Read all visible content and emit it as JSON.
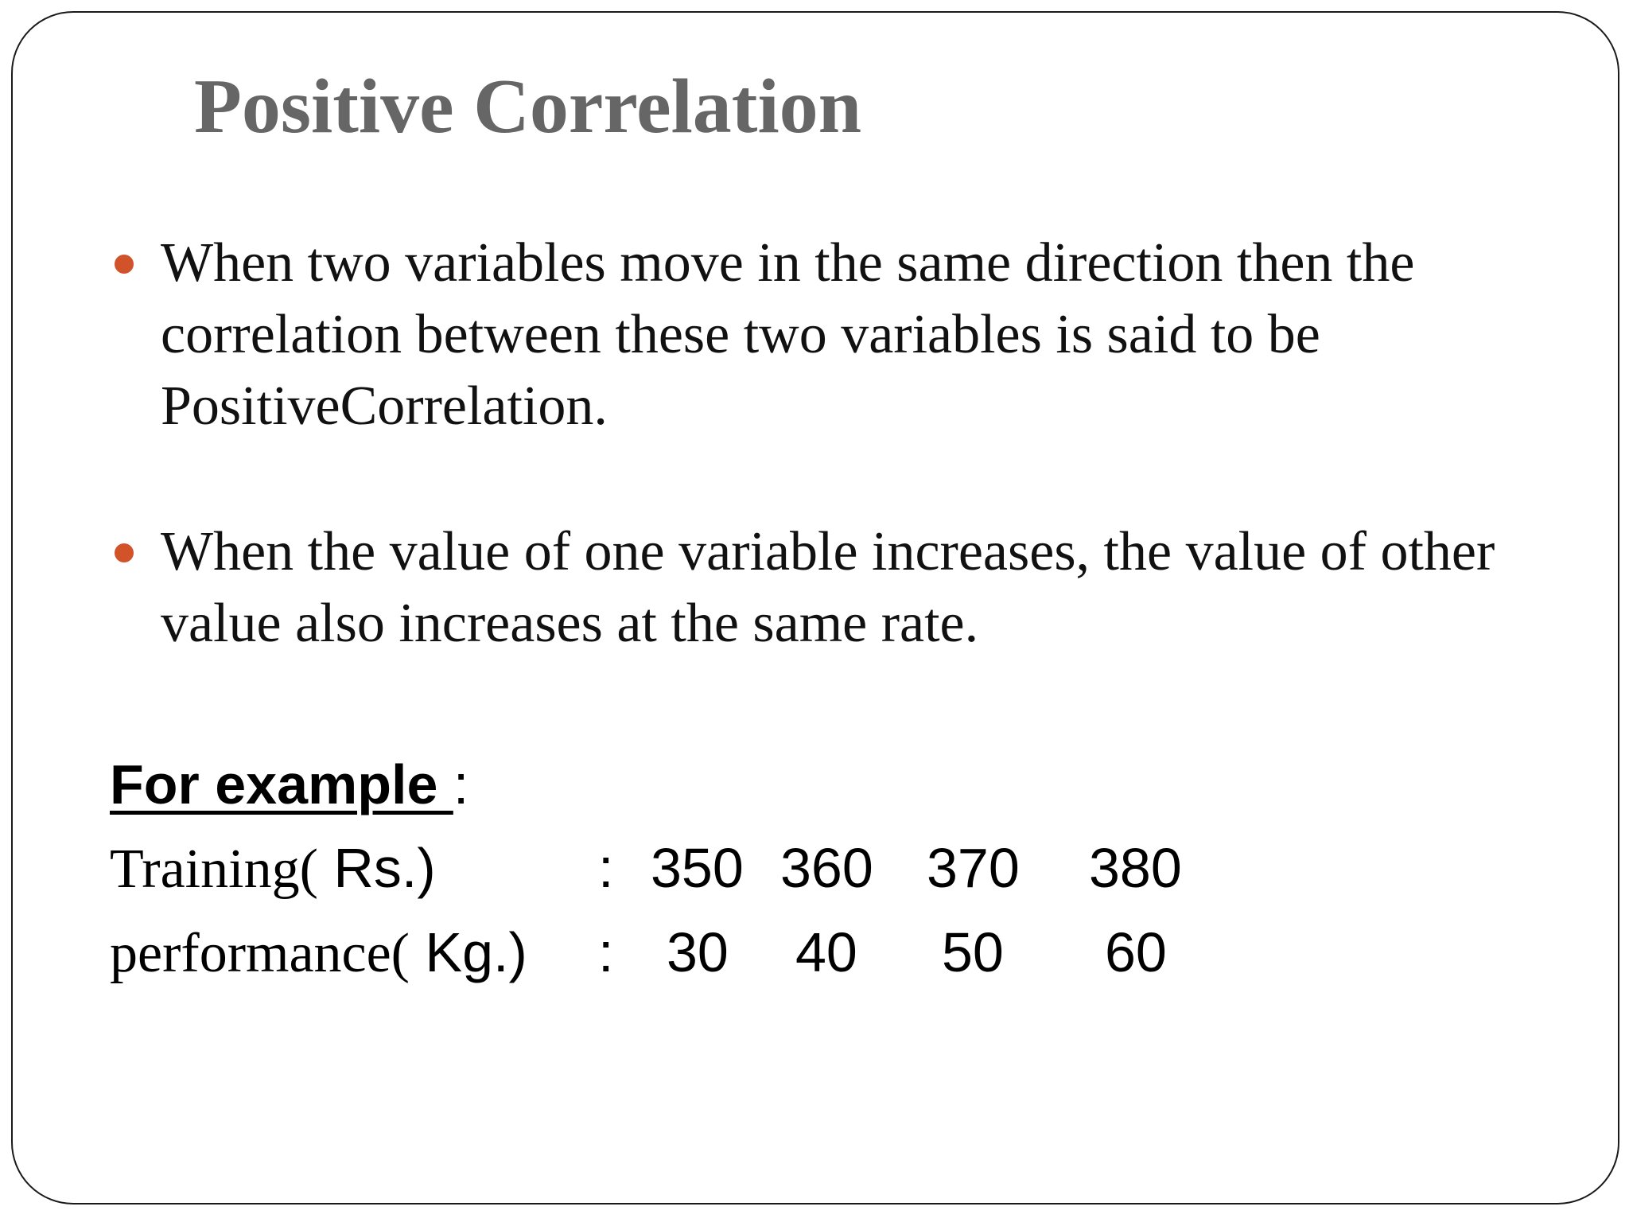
{
  "slide": {
    "title": "Positive Correlation",
    "bullet_color": "#d2532a",
    "title_color": "#666666",
    "bullets": [
      {
        "text": "When two variables move in the same direction then the correlation between these two variables is said to be PositiveCorrelation."
      },
      {
        "text": "When the value of one variable increases, the value of other value also increases at the same rate."
      }
    ],
    "example": {
      "heading": "For example ",
      "heading_suffix": ":",
      "rows": [
        {
          "label": "Training(",
          "unit": " Rs.)",
          "separator": ":",
          "values": [
            "350",
            "360",
            "370",
            "380"
          ]
        },
        {
          "label": "performance(",
          "unit": " Kg.)",
          "separator": ":",
          "values": [
            "30",
            "40",
            "50",
            "60"
          ]
        }
      ]
    }
  }
}
